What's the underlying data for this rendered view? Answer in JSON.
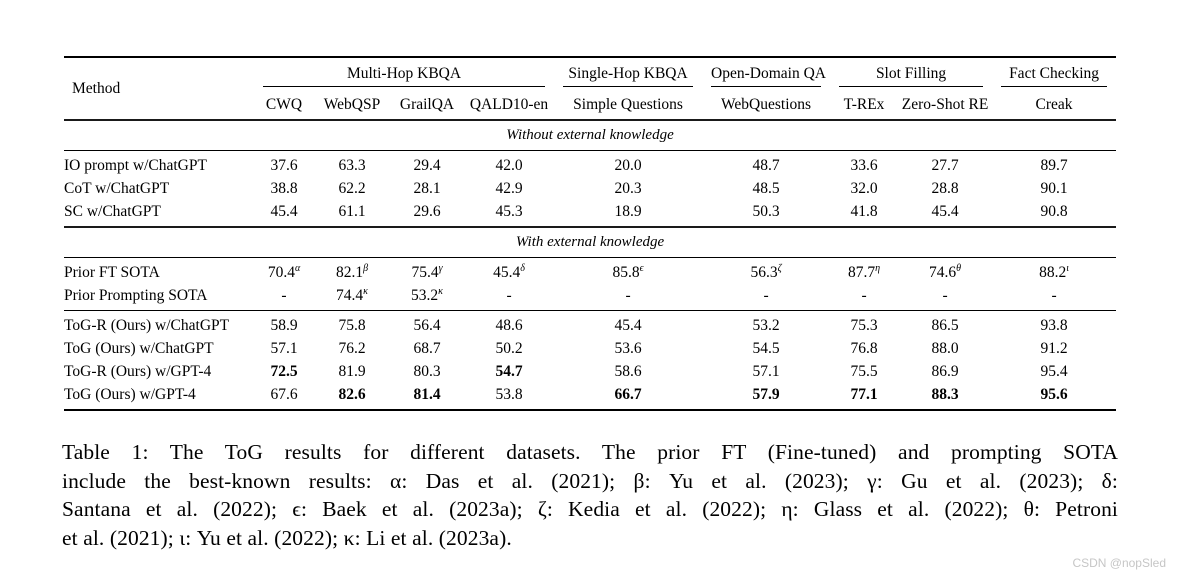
{
  "watermark": {
    "text": "CSDN @nopSled",
    "color": "#c6c6c6"
  },
  "caption_lines": [
    "Table 1: The ToG results for different datasets. The prior FT (Fine-tuned) and prompting SOTA",
    "include the best-known results: α: Das et al. (2021); β: Yu et al. (2023); γ: Gu et al. (2023); δ:",
    "Santana et al. (2022); ϵ: Baek et al. (2023a); ζ: Kedia et al. (2022); η: Glass et al. (2022); θ: Petroni",
    "et al. (2021); ι: Yu et al. (2022); κ: Li et al. (2023a)."
  ],
  "chart_data": {
    "type": "table",
    "title": "The ToG results for different datasets",
    "method_header": "Method",
    "groups": [
      {
        "label": "Multi-Hop KBQA",
        "span": 4
      },
      {
        "label": "Single-Hop KBQA",
        "span": 1
      },
      {
        "label": "Open-Domain QA",
        "span": 1
      },
      {
        "label": "Slot Filling",
        "span": 2
      },
      {
        "label": "Fact Checking",
        "span": 1
      }
    ],
    "columns": [
      "CWQ",
      "WebQSP",
      "GrailQA",
      "QALD10-en",
      "Simple Questions",
      "WebQuestions",
      "T-REx",
      "Zero-Shot RE",
      "Creak"
    ],
    "sections": [
      {
        "header": "Without external knowledge",
        "row_groups": [
          {
            "rows": [
              {
                "method": "IO prompt w/ChatGPT",
                "values": [
                  "37.6",
                  "63.3",
                  "29.4",
                  "42.0",
                  "20.0",
                  "48.7",
                  "33.6",
                  "27.7",
                  "89.7"
                ],
                "bold": []
              },
              {
                "method": "CoT w/ChatGPT",
                "values": [
                  "38.8",
                  "62.2",
                  "28.1",
                  "42.9",
                  "20.3",
                  "48.5",
                  "32.0",
                  "28.8",
                  "90.1"
                ],
                "bold": []
              },
              {
                "method": "SC w/ChatGPT",
                "values": [
                  "45.4",
                  "61.1",
                  "29.6",
                  "45.3",
                  "18.9",
                  "50.3",
                  "41.8",
                  "45.4",
                  "90.8"
                ],
                "bold": []
              }
            ]
          }
        ]
      },
      {
        "header": "With external knowledge",
        "row_groups": [
          {
            "rows": [
              {
                "method": "Prior FT SOTA",
                "values": [
                  "70.4^α",
                  "82.1^β",
                  "75.4^γ",
                  "45.4^δ",
                  "85.8^ϵ",
                  "56.3^ζ",
                  "87.7^η",
                  "74.6^θ",
                  "88.2^ι"
                ],
                "bold": []
              },
              {
                "method": "Prior Prompting SOTA",
                "values": [
                  "-",
                  "74.4^κ",
                  "53.2^κ",
                  "-",
                  "-",
                  "-",
                  "-",
                  "-",
                  "-"
                ],
                "bold": []
              }
            ]
          },
          {
            "rows": [
              {
                "method": "ToG-R (Ours) w/ChatGPT",
                "values": [
                  "58.9",
                  "75.8",
                  "56.4",
                  "48.6",
                  "45.4",
                  "53.2",
                  "75.3",
                  "86.5",
                  "93.8"
                ],
                "bold": []
              },
              {
                "method": "ToG (Ours) w/ChatGPT",
                "values": [
                  "57.1",
                  "76.2",
                  "68.7",
                  "50.2",
                  "53.6",
                  "54.5",
                  "76.8",
                  "88.0",
                  "91.2"
                ],
                "bold": []
              },
              {
                "method": "ToG-R (Ours) w/GPT-4",
                "values": [
                  "72.5",
                  "81.9",
                  "80.3",
                  "54.7",
                  "58.6",
                  "57.1",
                  "75.5",
                  "86.9",
                  "95.4"
                ],
                "bold": [
                  0,
                  3
                ]
              },
              {
                "method": "ToG (Ours) w/GPT-4",
                "values": [
                  "67.6",
                  "82.6",
                  "81.4",
                  "53.8",
                  "66.7",
                  "57.9",
                  "77.1",
                  "88.3",
                  "95.6"
                ],
                "bold": [
                  1,
                  2,
                  4,
                  5,
                  6,
                  7,
                  8
                ]
              }
            ]
          }
        ]
      }
    ]
  }
}
